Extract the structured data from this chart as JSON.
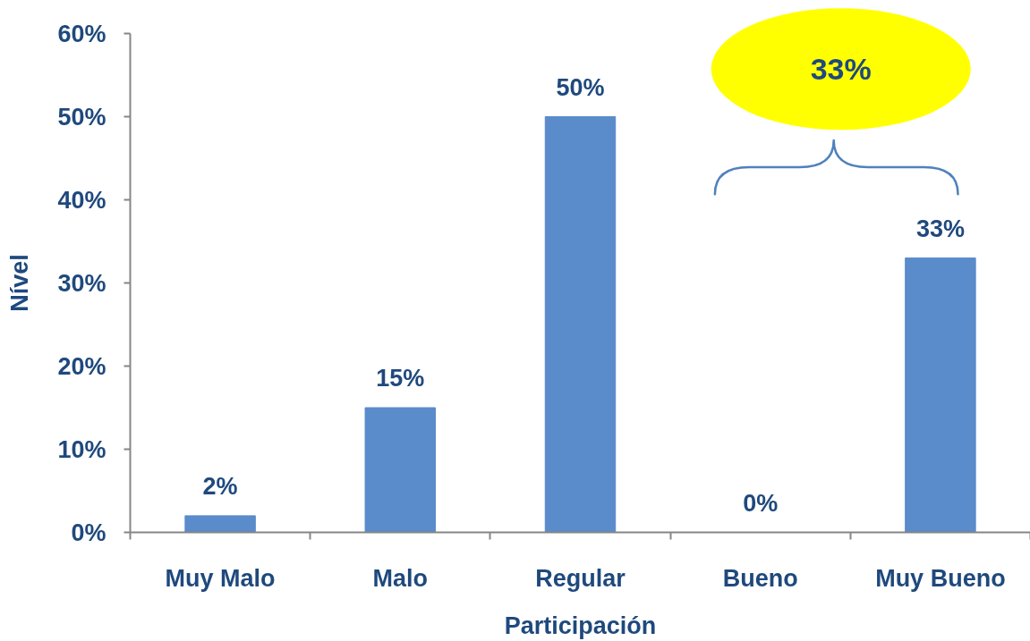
{
  "chart_data": {
    "type": "bar",
    "xlabel": "Participación",
    "ylabel": "Nível",
    "categories": [
      "Muy Malo",
      "Malo",
      "Regular",
      "Bueno",
      "Muy Bueno"
    ],
    "values": [
      2,
      15,
      50,
      0,
      33
    ],
    "value_labels": [
      "2%",
      "15%",
      "50%",
      "0%",
      "33%"
    ],
    "color": "#5a8bcb",
    "ylim": [
      0,
      60
    ],
    "yticks": [
      {
        "value": 0,
        "label": "0%"
      },
      {
        "value": 10,
        "label": "10%"
      },
      {
        "value": 20,
        "label": "20%"
      },
      {
        "value": 30,
        "label": "30%"
      },
      {
        "value": 40,
        "label": "40%"
      },
      {
        "value": 50,
        "label": "50%"
      },
      {
        "value": 60,
        "label": "60%"
      }
    ],
    "annotations": [
      "33%"
    ]
  }
}
